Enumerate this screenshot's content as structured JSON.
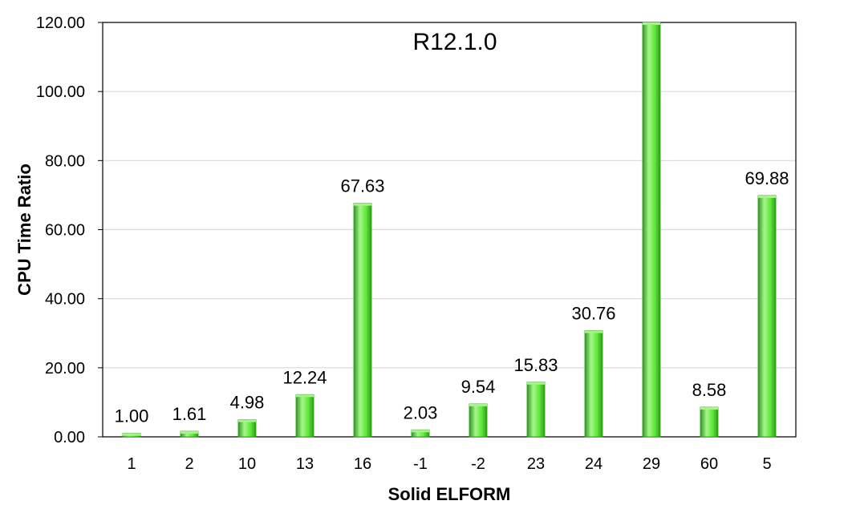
{
  "chart_data": {
    "type": "bar",
    "title": "R12.1.0",
    "xlabel": "Solid ELFORM",
    "ylabel": "CPU Time Ratio",
    "categories": [
      "1",
      "2",
      "10",
      "13",
      "16",
      "-1",
      "-2",
      "23",
      "24",
      "29",
      "60",
      "5"
    ],
    "values": [
      1.0,
      1.61,
      4.98,
      12.24,
      67.63,
      2.03,
      9.54,
      15.83,
      30.76,
      120.0,
      8.58,
      69.88
    ],
    "data_labels": [
      "1.00",
      "1.61",
      "4.98",
      "12.24",
      "67.63",
      "2.03",
      "9.54",
      "15.83",
      "30.76",
      "",
      "8.58",
      "69.88"
    ],
    "ylim": [
      0,
      120
    ],
    "yticks": [
      "0.00",
      "20.00",
      "40.00",
      "60.00",
      "80.00",
      "100.00",
      "120.00"
    ],
    "grid": true,
    "legend": "none",
    "bar_color": "#5ee83a",
    "bar_dark": "#2e9a18",
    "bar_light": "#a6f58c"
  }
}
